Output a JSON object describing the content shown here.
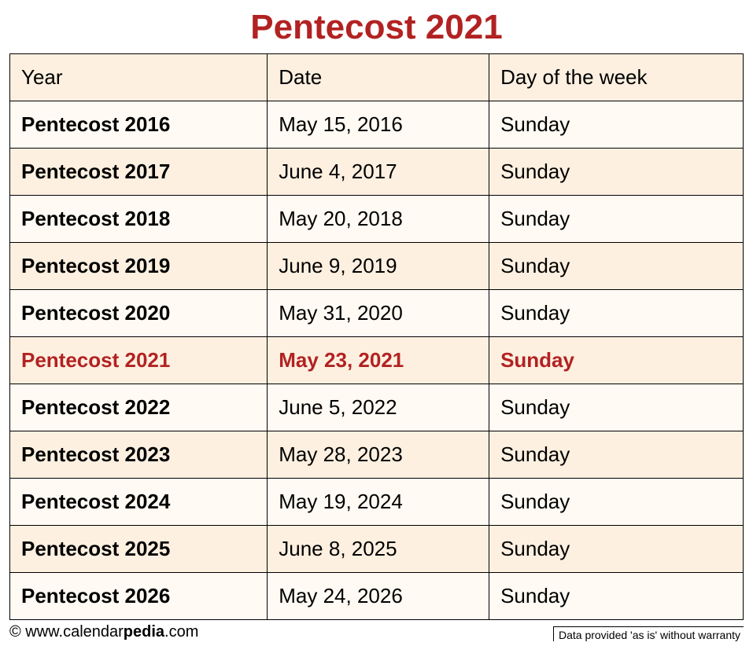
{
  "title": "Pentecost 2021",
  "colors": {
    "title_color": "#b22222",
    "highlight_color": "#b22222",
    "row_bg_light": "#fffaf3",
    "row_bg_dark": "#fdf0e0",
    "header_bg": "#fdf0e0",
    "border_color": "#000000",
    "text_color": "#000000",
    "background": "#ffffff"
  },
  "typography": {
    "title_fontsize": 44,
    "cell_fontsize": 26,
    "footer_fontsize": 20,
    "disclaimer_fontsize": 14,
    "font_family": "Arial"
  },
  "table": {
    "columns": [
      "Year",
      "Date",
      "Day of the week"
    ],
    "rows": [
      {
        "year": "Pentecost 2016",
        "date": "May 15, 2016",
        "day": "Sunday",
        "highlight": false
      },
      {
        "year": "Pentecost 2017",
        "date": "June 4, 2017",
        "day": "Sunday",
        "highlight": false
      },
      {
        "year": "Pentecost 2018",
        "date": "May 20, 2018",
        "day": "Sunday",
        "highlight": false
      },
      {
        "year": "Pentecost 2019",
        "date": "June 9, 2019",
        "day": "Sunday",
        "highlight": false
      },
      {
        "year": "Pentecost 2020",
        "date": "May 31, 2020",
        "day": "Sunday",
        "highlight": false
      },
      {
        "year": "Pentecost 2021",
        "date": "May 23, 2021",
        "day": "Sunday",
        "highlight": true
      },
      {
        "year": "Pentecost 2022",
        "date": "June 5, 2022",
        "day": "Sunday",
        "highlight": false
      },
      {
        "year": "Pentecost 2023",
        "date": "May 28, 2023",
        "day": "Sunday",
        "highlight": false
      },
      {
        "year": "Pentecost 2024",
        "date": "May 19, 2024",
        "day": "Sunday",
        "highlight": false
      },
      {
        "year": "Pentecost 2025",
        "date": "June 8, 2025",
        "day": "Sunday",
        "highlight": false
      },
      {
        "year": "Pentecost 2026",
        "date": "May 24, 2026",
        "day": "Sunday",
        "highlight": false
      }
    ]
  },
  "footer": {
    "copyright_prefix": "© www.calendar",
    "copyright_brand_bold": "pedia",
    "copyright_suffix": ".com",
    "disclaimer": "Data provided 'as is' without warranty"
  }
}
